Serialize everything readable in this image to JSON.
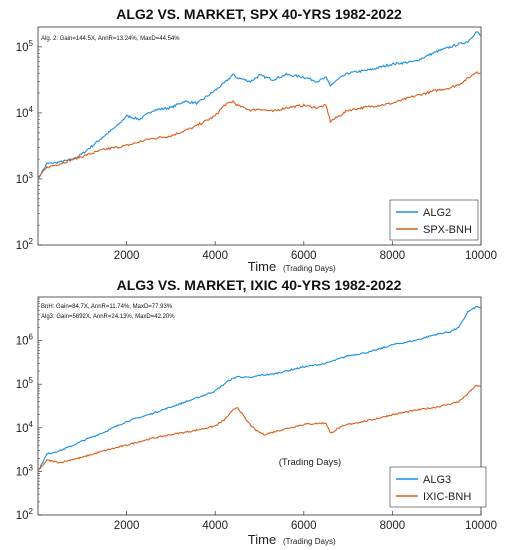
{
  "chart_data": [
    {
      "type": "line",
      "title": "ALG2 VS. MARKET, SPX 40-YRS 1982-2022",
      "annotations": [
        "Alg. 2: Gain=144.5X, AnnR=13.24%, MaxD=44.54%"
      ],
      "xlabel": "Time",
      "xlabel_note": "(Trading Days)",
      "ylabel": "",
      "yscale": "log",
      "xlim": [
        0,
        10000
      ],
      "ylim": [
        100,
        200000
      ],
      "xticks": [
        "2000",
        "4000",
        "6000",
        "8000",
        "10000"
      ],
      "yticks": [
        {
          "base": "10",
          "exp": "2",
          "value": 100
        },
        {
          "base": "10",
          "exp": "3",
          "value": 1000
        },
        {
          "base": "10",
          "exp": "4",
          "value": 10000
        },
        {
          "base": "10",
          "exp": "5",
          "value": 100000
        }
      ],
      "grid": false,
      "legend_position": "bottom-right",
      "series": [
        {
          "name": "ALG2",
          "color": "#1b8fe0",
          "x": [
            0,
            200,
            500,
            800,
            1000,
            1500,
            1800,
            2000,
            2300,
            2600,
            3000,
            3300,
            3600,
            4000,
            4200,
            4400,
            4500,
            4800,
            5000,
            5300,
            5600,
            6000,
            6300,
            6500,
            6600,
            6800,
            7000,
            7500,
            8000,
            8500,
            9000,
            9500,
            9700,
            9900,
            10000
          ],
          "y": [
            1000,
            1700,
            1800,
            2000,
            2400,
            4500,
            6500,
            9000,
            8000,
            11000,
            12000,
            15000,
            14000,
            22000,
            28000,
            38000,
            34000,
            30000,
            37000,
            32000,
            38000,
            35000,
            30000,
            34000,
            26000,
            33000,
            40000,
            45000,
            55000,
            60000,
            85000,
            110000,
            120000,
            170000,
            144500
          ]
        },
        {
          "name": "SPX-BNH",
          "color": "#d8601c",
          "x": [
            0,
            200,
            500,
            800,
            1000,
            1500,
            2000,
            2500,
            3000,
            3500,
            4000,
            4200,
            4400,
            4500,
            4800,
            5000,
            5300,
            5600,
            6000,
            6300,
            6500,
            6600,
            6800,
            7000,
            7500,
            8000,
            8500,
            9000,
            9300,
            9500,
            9700,
            9900,
            10000
          ],
          "y": [
            1000,
            1500,
            1700,
            2000,
            2200,
            2800,
            3200,
            4000,
            4500,
            6000,
            9000,
            13000,
            15000,
            13000,
            11000,
            11500,
            10500,
            12000,
            13000,
            12000,
            13000,
            7500,
            9000,
            11000,
            12500,
            14000,
            18000,
            22000,
            24000,
            27000,
            33000,
            42000,
            40000
          ]
        }
      ]
    },
    {
      "type": "line",
      "title": "ALG3 VS. MARKET, IXIC 40-YRS 1982-2022",
      "annotations": [
        "BnH: Gain=84.7X, AnnR=11.74%, MaxD=77.93%",
        "Alg3: Gain=5692X, AnnR=24.13%, MaxD=42.20%"
      ],
      "xlabel": "Time",
      "xlabel_note": "(Trading Days)",
      "mid_note": "(Trading Days)",
      "ylabel": "",
      "yscale": "log",
      "xlim": [
        0,
        10000
      ],
      "ylim": [
        100,
        10000000
      ],
      "xticks": [
        "2000",
        "4000",
        "6000",
        "8000",
        "10000"
      ],
      "yticks": [
        {
          "base": "10",
          "exp": "2",
          "value": 100
        },
        {
          "base": "10",
          "exp": "3",
          "value": 1000
        },
        {
          "base": "10",
          "exp": "4",
          "value": 10000
        },
        {
          "base": "10",
          "exp": "5",
          "value": 100000
        },
        {
          "base": "10",
          "exp": "6",
          "value": 1000000
        }
      ],
      "grid": false,
      "legend_position": "bottom-right",
      "series": [
        {
          "name": "ALG3",
          "color": "#1b8fe0",
          "x": [
            0,
            200,
            500,
            800,
            1000,
            1500,
            2000,
            2500,
            3000,
            3500,
            4000,
            4300,
            4500,
            4800,
            5000,
            5300,
            5600,
            6000,
            6500,
            7000,
            7500,
            8000,
            8500,
            9000,
            9300,
            9500,
            9700,
            9900,
            10000
          ],
          "y": [
            1000,
            2500,
            3000,
            4000,
            5000,
            8000,
            14000,
            20000,
            30000,
            45000,
            70000,
            120000,
            150000,
            140000,
            160000,
            170000,
            200000,
            250000,
            300000,
            450000,
            550000,
            800000,
            1000000,
            1400000,
            1600000,
            2000000,
            4500000,
            6000000,
            5692000
          ]
        },
        {
          "name": "IXIC-BNH",
          "color": "#d8601c",
          "x": [
            0,
            200,
            500,
            800,
            1000,
            1500,
            2000,
            2500,
            3000,
            3500,
            4000,
            4200,
            4400,
            4500,
            4700,
            4900,
            5100,
            5500,
            6000,
            6500,
            6600,
            6800,
            7000,
            7500,
            8000,
            8500,
            9000,
            9300,
            9500,
            9700,
            9900,
            10000
          ],
          "y": [
            1000,
            1800,
            1600,
            1900,
            2100,
            3000,
            4000,
            5500,
            7000,
            8500,
            11000,
            15000,
            25000,
            30000,
            15000,
            9000,
            7000,
            9000,
            12000,
            13000,
            7500,
            10000,
            12000,
            15000,
            20000,
            25000,
            30000,
            35000,
            40000,
            60000,
            95000,
            84700
          ]
        }
      ]
    }
  ]
}
